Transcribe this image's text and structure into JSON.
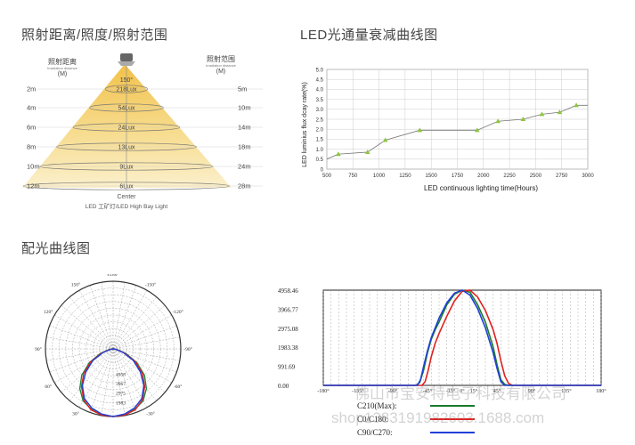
{
  "sections": {
    "cone_title": "照射距离/照度/照射范围",
    "decay_title": "LED光通量衰减曲线图",
    "distribution_title": "配光曲线图"
  },
  "chart_data": [
    {
      "type": "table",
      "title": "照射距离/照度/照射范围",
      "left_header": [
        "照射距离",
        "Irradiation distance",
        "(M)"
      ],
      "right_header": [
        "照射范围",
        "Irradiation distance",
        "(M)"
      ],
      "distances": [
        "2m",
        "4m",
        "6m",
        "8m",
        "10m",
        "12m"
      ],
      "illuminance": [
        "218Lux",
        "54Lux",
        "24Lux",
        "13Lux",
        "9Lux",
        "6Lux"
      ],
      "ranges": [
        "5m",
        "10m",
        "14m",
        "18m",
        "24m",
        "28m"
      ],
      "beam_angle": "150°",
      "center_label": "Center",
      "footer": "LED 工矿灯/LED High Bay Light"
    },
    {
      "type": "line",
      "title": "LED光通量衰减曲线图",
      "xlabel": "LED continuous lighting time(Hours)",
      "ylabel": "LED luminius flux dcay rate(%)",
      "xlim": [
        500,
        3000
      ],
      "ylim": [
        0,
        5.0
      ],
      "xticks": [
        500,
        750,
        1000,
        1250,
        1500,
        1750,
        2000,
        2250,
        2500,
        2750,
        3000
      ],
      "yticks": [
        "0",
        "0.5",
        "1.0",
        "1.5",
        "2.0",
        "2.5",
        "3.0",
        "3.5",
        "4.0",
        "4.5",
        "5.0"
      ],
      "grid": true,
      "series": [
        {
          "x": [
            500,
            610,
            890,
            1060,
            1390,
            1940,
            2140,
            2380,
            2560,
            2730,
            2890,
            3000
          ],
          "y": [
            0.5,
            0.75,
            0.85,
            1.45,
            1.95,
            1.95,
            2.4,
            2.5,
            2.75,
            2.85,
            3.2,
            3.2
          ]
        }
      ],
      "color": "#8cc63f"
    },
    {
      "type": "line",
      "subtype": "polar",
      "title": "配光曲线图",
      "angle_labels": [
        "±180°",
        "-150°",
        "150°",
        "-120°",
        "120°",
        "-90°",
        "90°",
        "-60°",
        "60°",
        "-30°",
        "30°",
        "0°"
      ],
      "radial_labels": [
        "4958",
        "3967",
        "2975",
        "1983"
      ],
      "series": [
        {
          "color": "#1f8a3a",
          "angles": [
            0,
            10,
            20,
            30,
            40,
            50,
            60,
            70,
            80,
            90
          ],
          "values": [
            4958,
            4900,
            4700,
            4400,
            3800,
            3000,
            2000,
            1000,
            300,
            0
          ]
        },
        {
          "color": "#e02020",
          "angles": [
            0,
            10,
            20,
            30,
            40,
            50,
            60,
            70,
            80,
            90
          ],
          "values": [
            4958,
            4920,
            4750,
            4300,
            3600,
            2800,
            1900,
            900,
            250,
            0
          ]
        },
        {
          "color": "#2040d8",
          "angles": [
            0,
            10,
            20,
            30,
            40,
            50,
            60,
            70,
            80,
            90
          ],
          "values": [
            4958,
            4850,
            4600,
            4200,
            3500,
            2600,
            1700,
            800,
            200,
            0
          ]
        }
      ]
    },
    {
      "type": "line",
      "title": "",
      "xlim": [
        -180,
        180
      ],
      "ylim": [
        0,
        4958.46
      ],
      "yticks": [
        "4958.46",
        "3966.77",
        "2975.08",
        "1983.38",
        "991.69",
        "0.00"
      ],
      "xticks": [
        "-180°",
        "-135°",
        "-90°",
        "-45°",
        "-15°",
        "0°",
        "15°",
        "45°",
        "90°",
        "135°",
        "180°"
      ],
      "grid": true,
      "series": [
        {
          "name": "C210(Max):",
          "color": "#1a7a2a",
          "x": [
            -180,
            -60,
            -55,
            -50,
            -45,
            -40,
            -35,
            -30,
            -20,
            -10,
            0,
            10,
            20,
            30,
            40,
            45,
            50,
            55,
            60,
            180
          ],
          "y": [
            0,
            0,
            150,
            800,
            1700,
            2400,
            2900,
            3300,
            4200,
            4750,
            4958,
            4850,
            4200,
            3300,
            2000,
            1100,
            300,
            50,
            0,
            0
          ]
        },
        {
          "name": "C0/C180:",
          "color": "#e02020",
          "x": [
            -180,
            -52,
            -48,
            -44,
            -40,
            -35,
            -30,
            -20,
            -10,
            0,
            10,
            20,
            30,
            40,
            45,
            50,
            55,
            60,
            65,
            180
          ],
          "y": [
            0,
            0,
            200,
            800,
            1500,
            2200,
            2700,
            3600,
            4400,
            4900,
            4958,
            4600,
            3900,
            2900,
            2200,
            1300,
            500,
            100,
            0,
            0
          ]
        },
        {
          "name": "C90/C270:",
          "color": "#2040d8",
          "x": [
            -180,
            -58,
            -54,
            -50,
            -45,
            -40,
            -35,
            -30,
            -20,
            -10,
            0,
            10,
            20,
            30,
            40,
            45,
            50,
            55,
            180
          ],
          "y": [
            0,
            0,
            300,
            1000,
            1800,
            2500,
            3000,
            3500,
            4300,
            4800,
            4958,
            4700,
            4000,
            3000,
            1700,
            900,
            200,
            0,
            0
          ]
        }
      ]
    }
  ],
  "watermarks": [
    "佛山市宝安特电子科技有限公司",
    "shop1383191982603.1688.com"
  ]
}
